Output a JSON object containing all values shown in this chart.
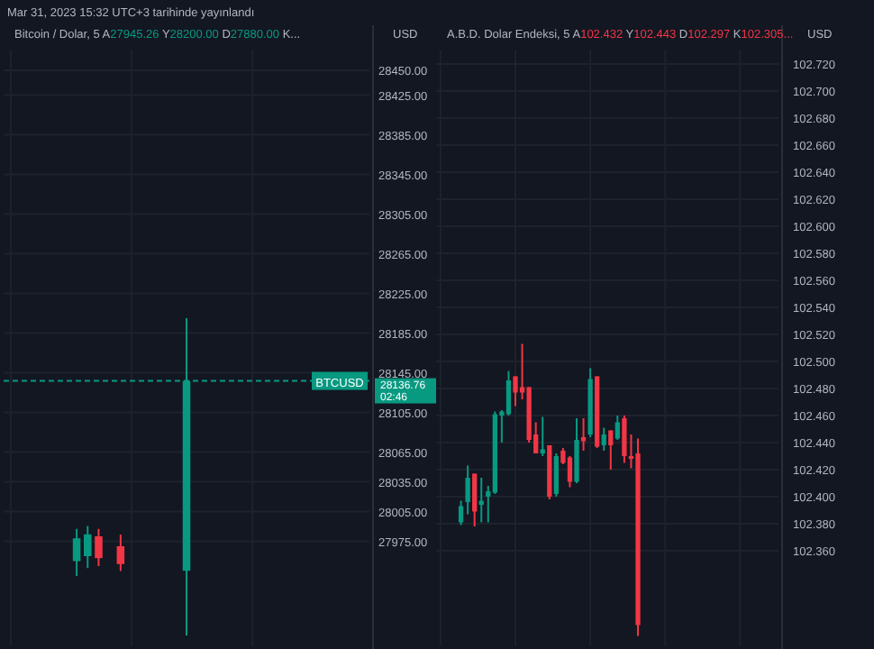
{
  "chart_data": [
    {
      "type": "candlestick",
      "title": "Bitcoin / Dolar, 5",
      "subtitle": "A27945.26 Y28200.00 D27880.00 K...",
      "ylabel": "USD",
      "annotations": [
        "Mar 31, 2023 15:32 UTC+3 tarihinde yayınlandı",
        "28136.76",
        "02:46"
      ],
      "categories": [
        null,
        null,
        null,
        null,
        null,
        null,
        null,
        null,
        null,
        null,
        null,
        null,
        null,
        null,
        null,
        null,
        null,
        null,
        null,
        null,
        null,
        null,
        null,
        null,
        null,
        null,
        null,
        null,
        null,
        null,
        null,
        null,
        null
      ],
      "ohlc": [
        null,
        null,
        null,
        null,
        null,
        null,
        [
          27955,
          27987.5,
          27940,
          27978
        ],
        [
          27960,
          27990.4,
          27948,
          27982
        ],
        [
          27980,
          27987.5,
          27950,
          27958
        ],
        null,
        [
          27970,
          27981.7,
          27945,
          27952
        ],
        null,
        null,
        null,
        null,
        null,
        [
          27945.26,
          28200,
          27880,
          28136.76
        ],
        null,
        null,
        null,
        null,
        null,
        null,
        null,
        null,
        null,
        null,
        null,
        null,
        null,
        null,
        null,
        null
      ],
      "colors": [
        null,
        null,
        null,
        null,
        null,
        null,
        "#089981",
        "#089981",
        "#f23645",
        null,
        "#f23645",
        null,
        null,
        null,
        null,
        null,
        "#089981",
        null,
        null,
        null,
        null,
        null,
        null,
        null,
        null,
        null,
        null,
        null,
        null,
        null,
        null,
        null,
        null
      ],
      "ylim": [
        27870,
        28470
      ],
      "yticks": [
        {
          "value": 28450,
          "label": "28450.00"
        },
        {
          "value": 28425,
          "label": "28425.00"
        },
        {
          "value": 28385,
          "label": "28385.00"
        },
        {
          "value": 28345,
          "label": "28345.00"
        },
        {
          "value": 28305,
          "label": "28305.00"
        },
        {
          "value": 28265,
          "label": "28265.00"
        },
        {
          "value": 28225,
          "label": "28225.00"
        },
        {
          "value": 28185,
          "label": "28185.00"
        },
        {
          "value": 28145,
          "label": "28145.00"
        },
        {
          "value": 28105,
          "label": "28105.00"
        },
        {
          "value": 28065,
          "label": "28065.00"
        },
        {
          "value": 28035,
          "label": "28035.00"
        },
        {
          "value": 28005,
          "label": "28005.00"
        },
        {
          "value": 27975,
          "label": "27975.00"
        }
      ],
      "ref_lines": [
        {
          "axis": "y",
          "value": 28136.76,
          "label": "BTCUSD",
          "color": "#089981",
          "line_style": "dashed"
        }
      ],
      "grid": true,
      "tick_labels": "y"
    },
    {
      "type": "candlestick",
      "title": "A.B.D. Dolar Endeksi, 5",
      "subtitle": "A102.432 Y102.443 D102.297 K102.305...",
      "ylabel": "USD",
      "categories": [
        null,
        null,
        null,
        null,
        null,
        null,
        null,
        null,
        null,
        null,
        null,
        null,
        null,
        null,
        null,
        null,
        null,
        null,
        null,
        null,
        null,
        null,
        null,
        null,
        null,
        null,
        null,
        null,
        null,
        null,
        null,
        null,
        null,
        null,
        null,
        null,
        null,
        null,
        null,
        null,
        null,
        null,
        null,
        null,
        null,
        null,
        null,
        null,
        null,
        null
      ],
      "ohlc": [
        null,
        null,
        null,
        [
          102.381,
          102.397,
          102.379,
          102.393
        ],
        [
          102.396,
          102.423,
          102.387,
          102.414
        ],
        [
          102.417,
          102.417,
          102.378,
          102.389
        ],
        [
          102.394,
          102.414,
          102.381,
          102.397
        ],
        [
          102.4,
          102.408,
          102.381,
          102.404
        ],
        [
          102.403,
          102.463,
          102.402,
          102.461
        ],
        [
          102.46,
          102.464,
          102.44,
          102.463
        ],
        [
          102.461,
          102.493,
          102.46,
          102.486
        ],
        [
          102.489,
          102.489,
          102.467,
          102.477
        ],
        [
          102.481,
          102.513,
          102.472,
          102.477
        ],
        [
          102.481,
          102.481,
          102.44,
          102.442
        ],
        [
          102.446,
          102.455,
          102.432,
          102.432
        ],
        [
          102.432,
          102.459,
          102.43,
          102.435
        ],
        [
          102.438,
          102.438,
          102.398,
          102.4
        ],
        [
          102.402,
          102.432,
          102.4,
          102.43
        ],
        [
          102.434,
          102.436,
          102.424,
          102.425
        ],
        [
          102.429,
          102.43,
          102.407,
          102.411
        ],
        [
          102.411,
          102.458,
          102.41,
          102.442
        ],
        [
          102.444,
          102.458,
          102.434,
          102.441
        ],
        [
          102.446,
          102.495,
          102.444,
          102.487
        ],
        [
          102.489,
          102.489,
          102.436,
          102.437
        ],
        [
          102.438,
          102.451,
          102.434,
          102.446
        ],
        [
          102.449,
          102.449,
          102.42,
          102.438
        ],
        [
          102.443,
          102.46,
          102.442,
          102.455
        ],
        [
          102.458,
          102.46,
          102.425,
          102.43
        ],
        [
          102.43,
          102.446,
          102.421,
          102.428
        ],
        [
          102.432,
          102.443,
          102.297,
          102.305
        ],
        null,
        null,
        null,
        null,
        null,
        null,
        null,
        null,
        null,
        null,
        null,
        null,
        null,
        null,
        null,
        null,
        null,
        null,
        null,
        null
      ],
      "colors": [
        null,
        null,
        null,
        "#089981",
        "#089981",
        "#f23645",
        "#089981",
        "#089981",
        "#089981",
        "#089981",
        "#089981",
        "#f23645",
        "#f23645",
        "#f23645",
        "#f23645",
        "#089981",
        "#f23645",
        "#089981",
        "#f23645",
        "#f23645",
        "#089981",
        "#f23645",
        "#089981",
        "#f23645",
        "#089981",
        "#f23645",
        "#089981",
        "#f23645",
        "#f23645",
        "#f23645",
        null,
        null,
        null,
        null,
        null,
        null,
        null,
        null,
        null,
        null,
        null,
        null,
        null,
        null,
        null,
        null,
        null,
        null,
        null,
        null
      ],
      "ylim": [
        102.29,
        102.73
      ],
      "yticks": [
        {
          "value": 102.72,
          "label": "102.720"
        },
        {
          "value": 102.7,
          "label": "102.700"
        },
        {
          "value": 102.68,
          "label": "102.680"
        },
        {
          "value": 102.66,
          "label": "102.660"
        },
        {
          "value": 102.64,
          "label": "102.640"
        },
        {
          "value": 102.62,
          "label": "102.620"
        },
        {
          "value": 102.6,
          "label": "102.600"
        },
        {
          "value": 102.58,
          "label": "102.580"
        },
        {
          "value": 102.56,
          "label": "102.560"
        },
        {
          "value": 102.54,
          "label": "102.540"
        },
        {
          "value": 102.52,
          "label": "102.520"
        },
        {
          "value": 102.5,
          "label": "102.500"
        },
        {
          "value": 102.48,
          "label": "102.480"
        },
        {
          "value": 102.46,
          "label": "102.460"
        },
        {
          "value": 102.44,
          "label": "102.440"
        },
        {
          "value": 102.42,
          "label": "102.420"
        },
        {
          "value": 102.4,
          "label": "102.400"
        },
        {
          "value": 102.38,
          "label": "102.380"
        },
        {
          "value": 102.36,
          "label": "102.360"
        }
      ],
      "grid": true,
      "tick_labels": "y"
    }
  ]
}
